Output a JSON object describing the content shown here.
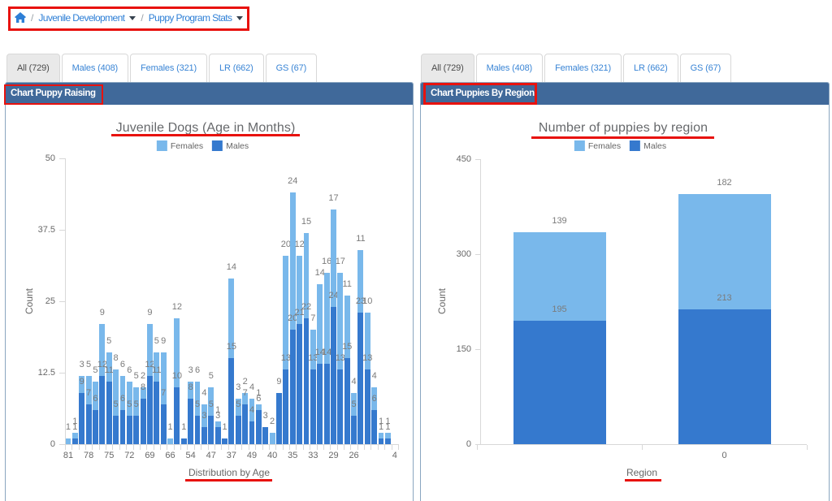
{
  "colors": {
    "female": "#79b8eb",
    "male": "#3579ce",
    "annotation_red": "#e8120e",
    "panel_header_bg": "#40699a",
    "panel_header_text": "#ffffff",
    "link_blue": "#2e7fd6",
    "tab_text_blue": "#3a85d5",
    "tab_active_bg": "#e9e9e9",
    "tab_active_text": "#4a4a4a",
    "axis_text_gray": "#686868",
    "value_label_gray": "#7b7b7b",
    "tick_mark_gray": "#d8d8d8"
  },
  "breadcrumb": {
    "home_icon": "home-icon",
    "separator": "/",
    "items": [
      {
        "label": "Juvenile Development",
        "caret": true
      },
      {
        "label": "Puppy Program Stats",
        "caret": true
      }
    ]
  },
  "tabs": {
    "labels": [
      "All (729)",
      "Males (408)",
      "Females (321)",
      "LR (662)",
      "GS (67)"
    ],
    "active": "All (729)"
  },
  "panels": [
    {
      "header": "Chart Puppy Raising"
    },
    {
      "header": "Chart Puppies By Region"
    }
  ],
  "chart_data": [
    {
      "type": "bar",
      "stacked": true,
      "title": "Juvenile Dogs (Age in Months)",
      "xlabel": "Distribution by Age",
      "ylabel": "Count",
      "ylim": [
        0,
        50
      ],
      "yticks": [
        0,
        12.5,
        25,
        37.5,
        50
      ],
      "x_tick_every": 3,
      "grid": false,
      "legend_position": "top",
      "categories": [
        "81",
        "",
        "",
        "78",
        "",
        "",
        "75",
        "",
        "",
        "72",
        "",
        "",
        "69",
        "",
        "",
        "66",
        "",
        "",
        "54",
        "",
        "",
        "47",
        "",
        "",
        "37",
        "",
        "",
        "49",
        "",
        "",
        "40",
        "",
        "",
        "35",
        "",
        "",
        "33",
        "",
        "",
        "29",
        "",
        "",
        "26",
        "",
        "",
        "",
        "",
        "",
        "4"
      ],
      "series": [
        {
          "name": "Females",
          "color_key": "female",
          "values": [
            1,
            1,
            3,
            5,
            5,
            9,
            5,
            8,
            6,
            6,
            5,
            2,
            9,
            5,
            9,
            1,
            12,
            0,
            3,
            6,
            4,
            5,
            1,
            0,
            14,
            3,
            2,
            4,
            1,
            0,
            2,
            0,
            20,
            24,
            12,
            15,
            7,
            14,
            16,
            17,
            17,
            11,
            4,
            11,
            10,
            4,
            1,
            1,
            0
          ]
        },
        {
          "name": "Males",
          "color_key": "male",
          "values": [
            0,
            1,
            9,
            7,
            6,
            12,
            11,
            5,
            6,
            5,
            5,
            8,
            12,
            11,
            7,
            0,
            10,
            1,
            8,
            5,
            3,
            5,
            3,
            1,
            15,
            5,
            7,
            4,
            6,
            3,
            0,
            9,
            13,
            20,
            21,
            22,
            13,
            14,
            14,
            24,
            13,
            15,
            5,
            23,
            13,
            6,
            1,
            1,
            0
          ]
        }
      ]
    },
    {
      "type": "bar",
      "stacked": true,
      "title": "Number of puppies by region",
      "xlabel": "Region",
      "ylabel": "Count",
      "ylim": [
        0,
        450
      ],
      "yticks": [
        0,
        150,
        300,
        450
      ],
      "x_tick_every": 1,
      "grid": false,
      "legend_position": "top",
      "categories": [
        "",
        "0"
      ],
      "series": [
        {
          "name": "Females",
          "color_key": "female",
          "values": [
            139,
            182
          ]
        },
        {
          "name": "Males",
          "color_key": "male",
          "values": [
            195,
            213
          ]
        }
      ]
    }
  ]
}
